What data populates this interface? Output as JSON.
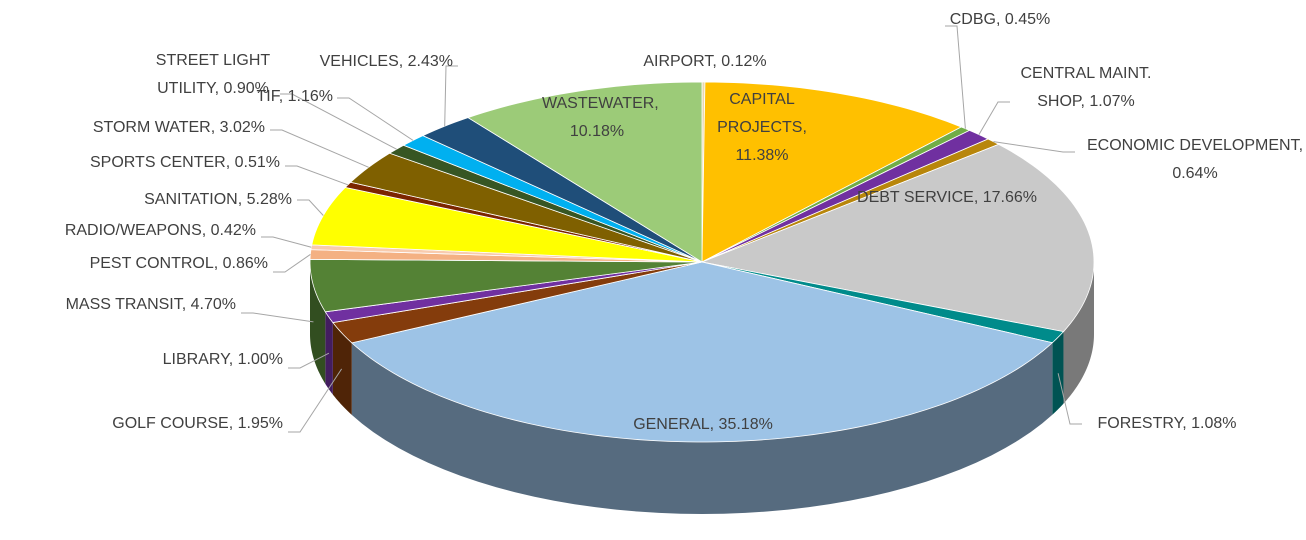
{
  "chart_data": {
    "type": "pie",
    "categories": [
      "AIRPORT",
      "CAPITAL PROJECTS",
      "CDBG",
      "CENTRAL MAINT. SHOP",
      "ECONOMIC DEVELOPMENT",
      "DEBT SERVICE",
      "FORESTRY",
      "GENERAL",
      "GOLF COURSE",
      "LIBRARY",
      "MASS TRANSIT",
      "PEST CONTROL",
      "RADIO/WEAPONS",
      "SANITATION",
      "SPORTS CENTER",
      "STORM WATER",
      "STREET LIGHT UTILITY",
      "TIF",
      "VEHICLES",
      "WASTEWATER"
    ],
    "values": [
      0.12,
      11.38,
      0.45,
      1.07,
      0.64,
      17.66,
      1.08,
      35.18,
      1.95,
      1.0,
      4.7,
      0.86,
      0.42,
      5.28,
      0.51,
      3.02,
      0.9,
      1.16,
      2.43,
      10.18
    ],
    "value_labels": [
      "0.12%",
      "11.38%",
      "0.45%",
      "1.07%",
      "0.64%",
      "17.66%",
      "1.08%",
      "35.18%",
      "1.95%",
      "1.00%",
      "4.70%",
      "0.86%",
      "0.42%",
      "5.28%",
      "0.51%",
      "3.02%",
      "0.90%",
      "1.16%",
      "2.43%",
      "10.18%"
    ],
    "colors": [
      "#e8d8b0",
      "#ffc000",
      "#70ad47",
      "#7030a0",
      "#b8860b",
      "#c9c9c9",
      "#008b8b",
      "#9dc3e6",
      "#843c0c",
      "#7030a0",
      "#548235",
      "#f4b183",
      "#f8cbad",
      "#ffff00",
      "#7b2500",
      "#7f6000",
      "#375623",
      "#00b0f0",
      "#1f4e79",
      "#9ccb78"
    ]
  }
}
